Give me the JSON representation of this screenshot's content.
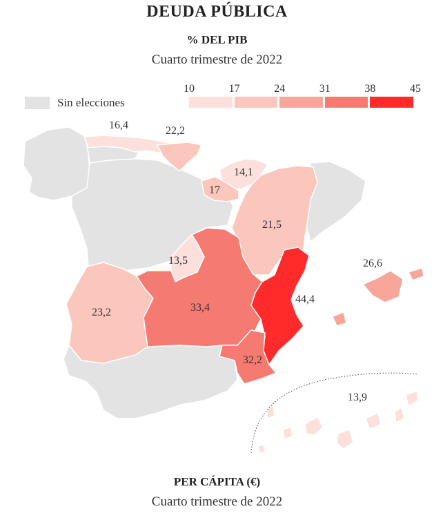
{
  "header": {
    "title": "DEUDA PÚBLICA",
    "subtitle": "% DEL PIB",
    "period": "Cuarto trimestre de 2022"
  },
  "legend": {
    "no_data_label": "Sin elecciones",
    "no_data_color": "#e3e3e3",
    "thresholds": [
      "10",
      "17",
      "24",
      "31",
      "38",
      "45"
    ],
    "bin_colors": [
      "#fde0dc",
      "#fbc6bb",
      "#f8a59a",
      "#f57a72",
      "#ff2a2a"
    ]
  },
  "regions": [
    {
      "name": "Cantabria",
      "value": "16,4",
      "color": "#fde0dc"
    },
    {
      "name": "País Vasco",
      "value": "14,1",
      "color": "#fde0dc"
    },
    {
      "name": "La Rioja",
      "value": "17",
      "color": "#fbc6bb"
    },
    {
      "name": "Navarra",
      "value": "22,2",
      "color": "#fbc6bb"
    },
    {
      "name": "Aragón",
      "value": "21,5",
      "color": "#fbc6bb"
    },
    {
      "name": "Madrid",
      "value": "13,5",
      "color": "#fde0dc"
    },
    {
      "name": "Extremadura",
      "value": "23,2",
      "color": "#fbc6bb"
    },
    {
      "name": "Castilla-La Mancha",
      "value": "33,4",
      "color": "#f57a72"
    },
    {
      "name": "Comunidad Valenciana",
      "value": "44,4",
      "color": "#ff2a2a"
    },
    {
      "name": "Región de Murcia",
      "value": "32,2",
      "color": "#f57a72"
    },
    {
      "name": "Islas Baleares",
      "value": "26,6",
      "color": "#f8a59a"
    },
    {
      "name": "Canarias",
      "value": "13,9",
      "color": "#fde0dc"
    }
  ],
  "footer": {
    "title": "PER CÁPITA (€)",
    "period": "Cuarto trimestre de 2022"
  }
}
